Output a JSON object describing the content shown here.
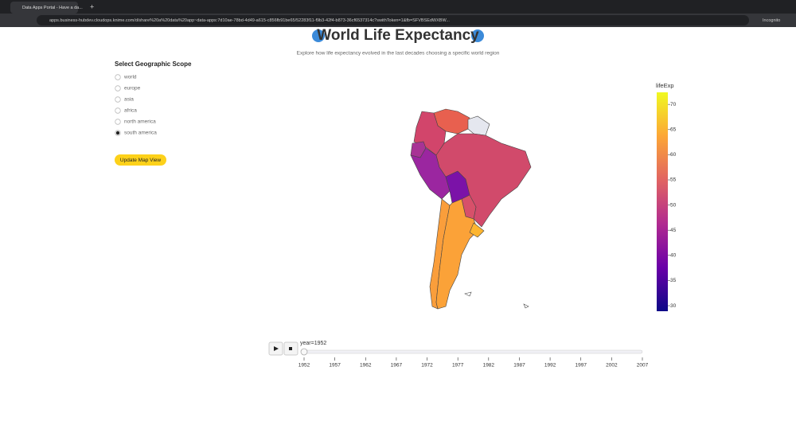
{
  "browser": {
    "tab_title": "Data Apps Portal - Have a da...",
    "url": "apps.business-hubdev.cloudops.knime.com/d/share%20a%20data%20app~data-apps:7d10ae-78bd-4d49-a615-c856fb91be65/52283f11-f9b3-42f4-b873-36cf6537314c?swithToken=1&fb=SFVBSEdWXBW...",
    "profile": "Incognito"
  },
  "header": {
    "title": "World Life Expectancy",
    "subtitle": "Explore how life expectancy evolved in the last decades choosing a specific world region"
  },
  "scope": {
    "label": "Select Geographic Scope",
    "options": [
      {
        "label": "world",
        "checked": false
      },
      {
        "label": "europe",
        "checked": false
      },
      {
        "label": "asia",
        "checked": false
      },
      {
        "label": "africa",
        "checked": false
      },
      {
        "label": "north america",
        "checked": false
      },
      {
        "label": "south america",
        "checked": true
      }
    ],
    "button": "Update Map View"
  },
  "colorbar": {
    "title": "lifeExp",
    "lim": [
      28.9,
      72.4
    ],
    "ticks": [
      30,
      35,
      40,
      45,
      50,
      55,
      60,
      65,
      70
    ]
  },
  "slider": {
    "current_label": "year=1952",
    "ticks": [
      1952,
      1957,
      1962,
      1967,
      1972,
      1977,
      1982,
      1987,
      1992,
      1997,
      2002,
      2007
    ],
    "value": 1952
  }
}
